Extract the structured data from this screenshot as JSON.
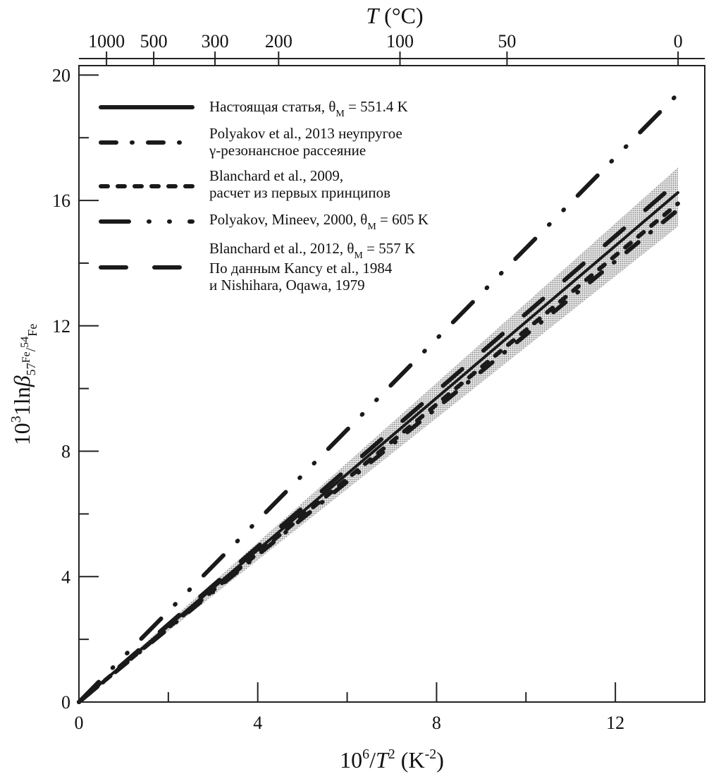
{
  "chart_data": {
    "type": "line",
    "xlabel": {
      "pre": "10",
      "sup": "6",
      "mid": "/",
      "it": "T",
      "sup2": "2",
      "post": " (K",
      "sup3": "-2",
      "end": ")"
    },
    "ylabel": {
      "pre": "10",
      "sup": "3",
      "mid": "1ln",
      "beta": "β",
      "s1": "57",
      "s2": "Fe",
      "s3": "/",
      "s4": "54",
      "s5": "Fe"
    },
    "top_axis_title": {
      "it": "T",
      "post": " (°C)"
    },
    "xlim": [
      0,
      14
    ],
    "ylim": [
      0,
      20.3
    ],
    "x_ticks": [
      0,
      4,
      8,
      12
    ],
    "x_minor_ticks": [
      2,
      6,
      10
    ],
    "y_ticks": [
      0,
      4,
      8,
      12,
      16,
      20
    ],
    "y_minor_ticks": [
      2,
      6,
      10,
      14,
      18
    ],
    "top_ticks_celsius": [
      1000,
      500,
      300,
      200,
      100,
      50,
      0
    ],
    "grid": false,
    "legend_position": "top-left",
    "band": {
      "x": [
        0,
        13.4
      ],
      "lower": [
        0,
        15.17
      ],
      "upper": [
        0,
        17.05
      ],
      "color": "#b5b5b5"
    },
    "series": [
      {
        "name": "Настоящая статья",
        "style": "solid",
        "x": [
          0,
          13.4
        ],
        "y": [
          0,
          16.25
        ],
        "legend": [
          {
            "pre": "Настоящая статья, θ",
            "sub": "М",
            "post": " = 551.4 K"
          }
        ]
      },
      {
        "name": "Polyakov et al., 2013",
        "style": "dash-dot",
        "x": [
          0,
          13.4
        ],
        "y": [
          0,
          15.7
        ],
        "legend": [
          {
            "pre": "Polyakov et al., 2013 неупругое"
          },
          {
            "pre": "γ-резонансное рассеяние"
          }
        ]
      },
      {
        "name": "Blanchard et al., 2009",
        "style": "short-dash",
        "x": [
          0,
          13.4
        ],
        "y": [
          0,
          15.9
        ],
        "legend": [
          {
            "pre": "Blanchard et al., 2009,"
          },
          {
            "pre": "расчет из первых принципов"
          }
        ]
      },
      {
        "name": "Polyakov, Mineev, 2000",
        "style": "dash-dot-dot",
        "x": [
          0,
          13.4
        ],
        "y": [
          0,
          19.4
        ],
        "legend": [
          {
            "pre": "Polyakov, Mineev, 2000, θ",
            "sub": "М",
            "post": " = 605 K"
          }
        ]
      },
      {
        "name": "Blanchard et al., 2012",
        "style": "none",
        "x": [],
        "y": [],
        "legend": [
          {
            "pre": "Blanchard et al., 2012, θ",
            "sub": "М",
            "post": " = 557 K"
          }
        ]
      },
      {
        "name": "Kancy et al., 1984; Nishihara, Oqawa, 1979",
        "style": "long-dash",
        "x": [
          0,
          13.4
        ],
        "y": [
          0,
          16.6
        ],
        "legend": [
          {
            "pre": "По данным Kancy et al., 1984"
          },
          {
            "pre": "и Nishihara, Oqawa, 1979"
          }
        ]
      }
    ]
  }
}
